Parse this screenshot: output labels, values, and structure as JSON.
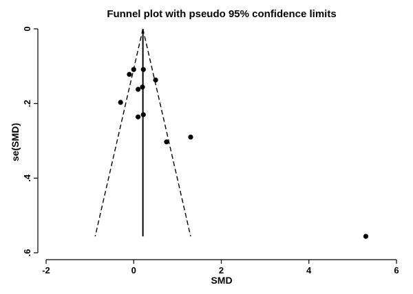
{
  "chart_data": {
    "type": "scatter",
    "title": "Funnel plot with pseudo 95% confidence limits",
    "xlabel": "SMD",
    "ylabel": "se(SMD)",
    "xlim": [
      -2,
      6
    ],
    "ylim": [
      0,
      0.6
    ],
    "y_inverted": true,
    "x_ticks": [
      -2,
      0,
      2,
      4,
      6
    ],
    "x_tick_labels": [
      "-2",
      "0",
      "2",
      "4",
      "6"
    ],
    "y_ticks": [
      0,
      0.2,
      0.4,
      0.6
    ],
    "y_tick_labels": [
      "0",
      ".2",
      ".4",
      ".6"
    ],
    "grid": false,
    "points": [
      {
        "x": -0.1,
        "y": 0.122
      },
      {
        "x": 0.0,
        "y": 0.109
      },
      {
        "x": 0.22,
        "y": 0.109
      },
      {
        "x": 0.5,
        "y": 0.137
      },
      {
        "x": 0.1,
        "y": 0.162
      },
      {
        "x": 0.2,
        "y": 0.156
      },
      {
        "x": -0.3,
        "y": 0.197
      },
      {
        "x": 0.1,
        "y": 0.236
      },
      {
        "x": 0.22,
        "y": 0.23
      },
      {
        "x": 0.75,
        "y": 0.303
      },
      {
        "x": 1.3,
        "y": 0.29
      },
      {
        "x": 5.3,
        "y": 0.556
      }
    ],
    "pooled_effect": 0.21,
    "funnel": {
      "apex": {
        "x": 0.21,
        "y": 0
      },
      "left_base": {
        "x": -0.88,
        "y": 0.556
      },
      "right_base": {
        "x": 1.3,
        "y": 0.556
      }
    }
  }
}
